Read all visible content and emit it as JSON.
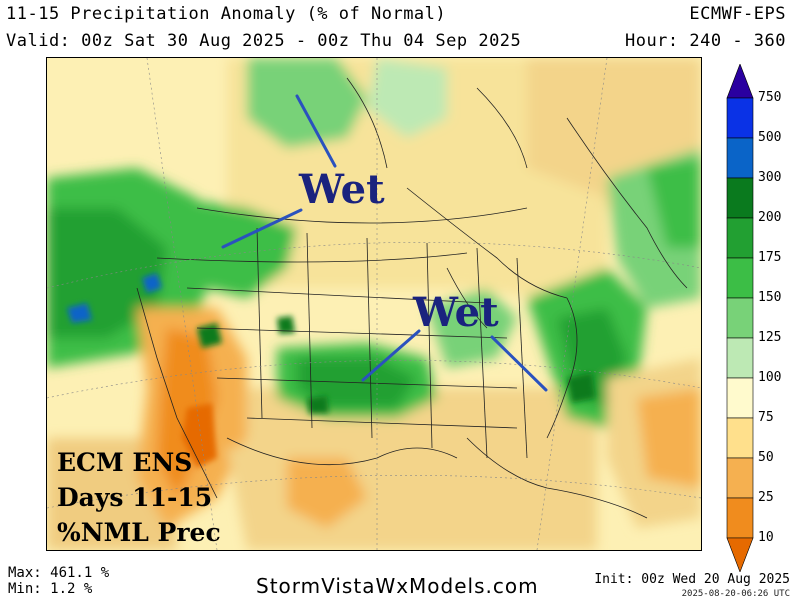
{
  "header": {
    "title": "11-15 Precipitation Anomaly (% of Normal)",
    "valid": "Valid: 00z Sat 30 Aug 2025 - 00z Thu 04 Sep 2025",
    "model": "ECMWF-EPS",
    "hour": "Hour: 240 - 360"
  },
  "annotations": {
    "wet_north": "Wet",
    "wet_east": "Wet",
    "overlay_lines": [
      "ECM ENS",
      "Days 11-15",
      "%NML Prec"
    ]
  },
  "colorbar": {
    "levels": [
      "750",
      "500",
      "300",
      "200",
      "175",
      "150",
      "125",
      "100",
      "75",
      "50",
      "25",
      "10"
    ],
    "colors": [
      "#2a00a0",
      "#0a32e6",
      "#0a64c8",
      "#0a7a1e",
      "#22a032",
      "#3cbe46",
      "#78d278",
      "#bde9b4",
      "#fffacd",
      "#ffe08c",
      "#f5b050",
      "#f08c1e",
      "#e66a00"
    ]
  },
  "footer": {
    "max": "Max: 461.1 %",
    "min": "Min: 1.2 %",
    "site": "StormVistaWxModels.com",
    "init": "Init: 00z Wed 20 Aug 2025",
    "stamp": "2025-08-20-06:26 UTC"
  }
}
